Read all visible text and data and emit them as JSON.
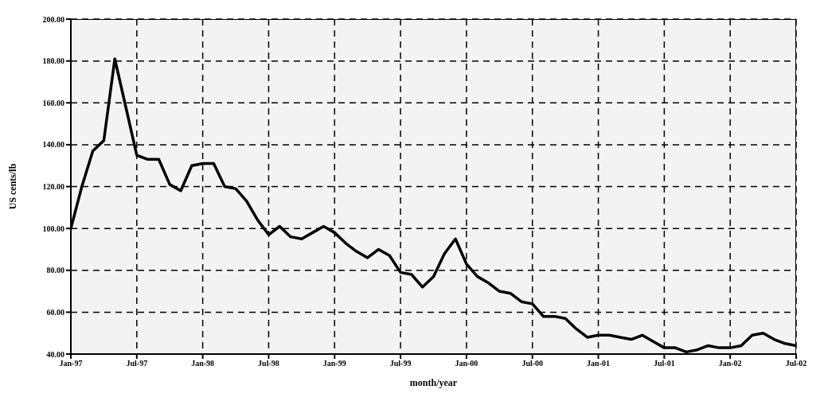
{
  "chart_data": {
    "type": "line",
    "xlabel": "month/year",
    "ylabel": "US cents/lb",
    "x": [
      "1997-01",
      "1997-02",
      "1997-03",
      "1997-04",
      "1997-05",
      "1997-06",
      "1997-07",
      "1997-08",
      "1997-09",
      "1997-10",
      "1997-11",
      "1997-12",
      "1998-01",
      "1998-02",
      "1998-03",
      "1998-04",
      "1998-05",
      "1998-06",
      "1998-07",
      "1998-08",
      "1998-09",
      "1998-10",
      "1998-11",
      "1998-12",
      "1999-01",
      "1999-02",
      "1999-03",
      "1999-04",
      "1999-05",
      "1999-06",
      "1999-07",
      "1999-08",
      "1999-09",
      "1999-10",
      "1999-11",
      "1999-12",
      "2000-01",
      "2000-02",
      "2000-03",
      "2000-04",
      "2000-05",
      "2000-06",
      "2000-07",
      "2000-08",
      "2000-09",
      "2000-10",
      "2000-11",
      "2000-12",
      "2001-01",
      "2001-02",
      "2001-03",
      "2001-04",
      "2001-05",
      "2001-06",
      "2001-07",
      "2001-08",
      "2001-09",
      "2001-10",
      "2001-11",
      "2001-12",
      "2002-01",
      "2002-02",
      "2002-03",
      "2002-04",
      "2002-05",
      "2002-06",
      "2002-07"
    ],
    "series": [
      {
        "color": "#000000",
        "values": [
          100,
          120,
          137,
          142,
          181,
          158,
          135,
          133,
          133,
          121,
          118,
          130,
          131,
          131,
          120,
          119,
          113,
          104,
          97,
          101,
          96,
          95,
          98,
          101,
          98,
          93,
          89,
          86,
          90,
          87,
          79,
          78,
          72,
          77,
          88,
          95,
          83,
          77,
          74,
          70,
          69,
          65,
          64,
          58,
          58,
          57,
          52,
          48,
          49,
          49,
          48,
          47,
          49,
          46,
          43,
          43,
          41,
          42,
          44,
          43,
          43,
          44,
          49,
          50,
          47,
          45,
          44
        ]
      }
    ],
    "xlim": [
      "1997-01",
      "2002-07"
    ],
    "xticks": [
      {
        "value": "1997-01",
        "label": "Jan-97"
      },
      {
        "value": "1997-07",
        "label": "Jul-97"
      },
      {
        "value": "1998-01",
        "label": "Jan-98"
      },
      {
        "value": "1998-07",
        "label": "Jul-98"
      },
      {
        "value": "1999-01",
        "label": "Jan-99"
      },
      {
        "value": "1999-07",
        "label": "Jul-99"
      },
      {
        "value": "2000-01",
        "label": "Jan-00"
      },
      {
        "value": "2000-07",
        "label": "Jul-00"
      },
      {
        "value": "2001-01",
        "label": "Jan-01"
      },
      {
        "value": "2001-07",
        "label": "Jul-01"
      },
      {
        "value": "2002-01",
        "label": "Jan-02"
      },
      {
        "value": "2002-07",
        "label": "Jul-02"
      }
    ],
    "ylim": [
      40,
      200
    ],
    "yticks": [
      {
        "value": 40,
        "label": "40.00"
      },
      {
        "value": 60,
        "label": "60.00"
      },
      {
        "value": 80,
        "label": "80.00"
      },
      {
        "value": 100,
        "label": "100.00"
      },
      {
        "value": 120,
        "label": "120.00"
      },
      {
        "value": 140,
        "label": "140.00"
      },
      {
        "value": 160,
        "label": "160.00"
      },
      {
        "value": 180,
        "label": "180.00"
      },
      {
        "value": 200,
        "label": "200.00"
      }
    ],
    "grid": true,
    "legend": false,
    "marker": "none",
    "line_style": "solid"
  }
}
